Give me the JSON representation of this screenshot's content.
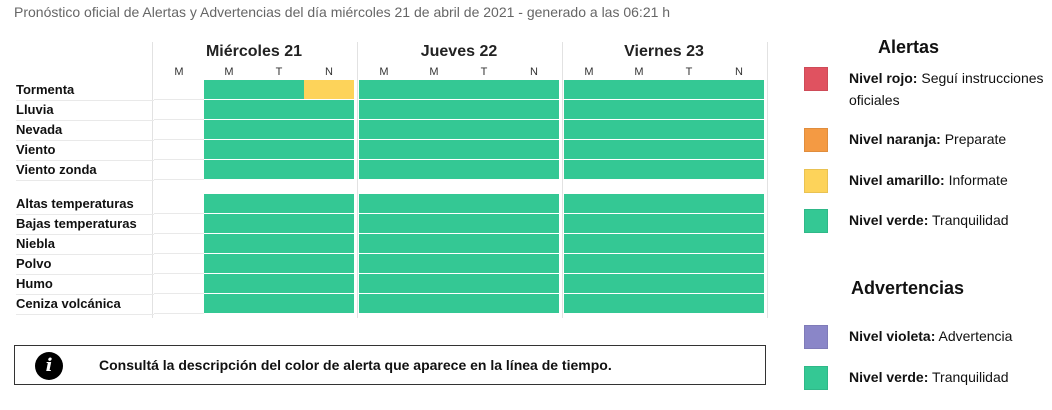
{
  "header": {
    "text": "Pronóstico oficial de Alertas y Advertencias del día miércoles 21 de abril de 2021 - generado a las 06:21 h"
  },
  "colors": {
    "rojo": "#e05260",
    "naranja": "#f49a43",
    "amarillo": "#fdd35a",
    "verde": "#34c894",
    "violeta": "#8a86c8",
    "empty": "#ffffff"
  },
  "timeline": {
    "days": [
      {
        "label": "Miércoles 21",
        "periods": [
          "M",
          "M",
          "T",
          "N"
        ]
      },
      {
        "label": "Jueves 22",
        "periods": [
          "M",
          "M",
          "T",
          "N"
        ]
      },
      {
        "label": "Viernes 23",
        "periods": [
          "M",
          "M",
          "T",
          "N"
        ]
      }
    ],
    "rows": [
      {
        "label": "Tormenta",
        "group": 0,
        "levels": [
          "empty",
          "verde",
          "verde",
          "amarillo",
          "verde",
          "verde",
          "verde",
          "verde",
          "verde",
          "verde",
          "verde",
          "verde"
        ]
      },
      {
        "label": "Lluvia",
        "group": 0,
        "levels": [
          "empty",
          "verde",
          "verde",
          "verde",
          "verde",
          "verde",
          "verde",
          "verde",
          "verde",
          "verde",
          "verde",
          "verde"
        ]
      },
      {
        "label": "Nevada",
        "group": 0,
        "levels": [
          "empty",
          "verde",
          "verde",
          "verde",
          "verde",
          "verde",
          "verde",
          "verde",
          "verde",
          "verde",
          "verde",
          "verde"
        ]
      },
      {
        "label": "Viento",
        "group": 0,
        "levels": [
          "empty",
          "verde",
          "verde",
          "verde",
          "verde",
          "verde",
          "verde",
          "verde",
          "verde",
          "verde",
          "verde",
          "verde"
        ]
      },
      {
        "label": "Viento zonda",
        "group": 0,
        "levels": [
          "empty",
          "verde",
          "verde",
          "verde",
          "verde",
          "verde",
          "verde",
          "verde",
          "verde",
          "verde",
          "verde",
          "verde"
        ]
      },
      {
        "label": "Altas temperaturas",
        "group": 1,
        "levels": [
          "empty",
          "verde",
          "verde",
          "verde",
          "verde",
          "verde",
          "verde",
          "verde",
          "verde",
          "verde",
          "verde",
          "verde"
        ]
      },
      {
        "label": "Bajas temperaturas",
        "group": 1,
        "levels": [
          "empty",
          "verde",
          "verde",
          "verde",
          "verde",
          "verde",
          "verde",
          "verde",
          "verde",
          "verde",
          "verde",
          "verde"
        ]
      },
      {
        "label": "Niebla",
        "group": 1,
        "levels": [
          "empty",
          "verde",
          "verde",
          "verde",
          "verde",
          "verde",
          "verde",
          "verde",
          "verde",
          "verde",
          "verde",
          "verde"
        ]
      },
      {
        "label": "Polvo",
        "group": 1,
        "levels": [
          "empty",
          "verde",
          "verde",
          "verde",
          "verde",
          "verde",
          "verde",
          "verde",
          "verde",
          "verde",
          "verde",
          "verde"
        ]
      },
      {
        "label": "Humo",
        "group": 1,
        "levels": [
          "empty",
          "verde",
          "verde",
          "verde",
          "verde",
          "verde",
          "verde",
          "verde",
          "verde",
          "verde",
          "verde",
          "verde"
        ]
      },
      {
        "label": "Ceniza volcánica",
        "group": 1,
        "levels": [
          "empty",
          "verde",
          "verde",
          "verde",
          "verde",
          "verde",
          "verde",
          "verde",
          "verde",
          "verde",
          "verde",
          "verde"
        ]
      }
    ]
  },
  "info": {
    "icon": "info-icon",
    "glyph": "i",
    "text": "Consultá la descripción del color de alerta que aparece en la línea de tiempo."
  },
  "legend": {
    "alertas_title": "Alertas",
    "alertas": [
      {
        "level": "rojo",
        "name": "Nivel rojo:",
        "desc": "Seguí instrucciones oficiales"
      },
      {
        "level": "naranja",
        "name": "Nivel naranja:",
        "desc": "Preparate"
      },
      {
        "level": "amarillo",
        "name": "Nivel amarillo:",
        "desc": "Informate"
      },
      {
        "level": "verde",
        "name": "Nivel verde:",
        "desc": "Tranquilidad"
      }
    ],
    "advertencias_title": "Advertencias",
    "advertencias": [
      {
        "level": "violeta",
        "name": "Nivel violeta:",
        "desc": "Advertencia"
      },
      {
        "level": "verde",
        "name": "Nivel verde:",
        "desc": "Tranquilidad"
      }
    ]
  }
}
